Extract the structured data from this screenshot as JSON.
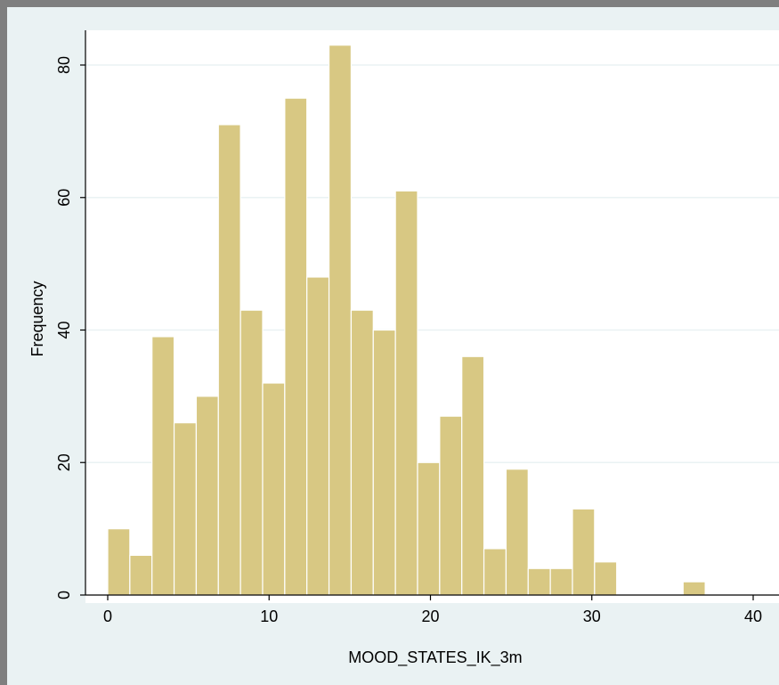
{
  "colors": {
    "outer_background": "#7f7f7f",
    "graph_region": "#eaf2f3",
    "plot_region": "#ffffff",
    "gridline": "#eaf2f3",
    "bar_fill": "#d8c883",
    "bar_edge": "#c9b875",
    "axis_line": "#000000"
  },
  "chart_data": {
    "type": "bar",
    "subtype": "histogram",
    "xlabel": "MOOD_STATES_IK_3m",
    "ylabel": "Frequency",
    "xlim": [
      0,
      40
    ],
    "ylim": [
      0,
      85
    ],
    "xticks": [
      0,
      10,
      20,
      30,
      40
    ],
    "yticks": [
      0,
      20,
      40,
      60,
      80
    ],
    "grid": "horizontal",
    "bin_width": 1.371,
    "bins": [
      {
        "start": 0.0,
        "value": 10
      },
      {
        "start": 1.371,
        "value": 6
      },
      {
        "start": 2.743,
        "value": 39
      },
      {
        "start": 4.114,
        "value": 26
      },
      {
        "start": 5.486,
        "value": 30
      },
      {
        "start": 6.857,
        "value": 71
      },
      {
        "start": 8.229,
        "value": 43
      },
      {
        "start": 9.6,
        "value": 32
      },
      {
        "start": 10.971,
        "value": 75
      },
      {
        "start": 12.343,
        "value": 48
      },
      {
        "start": 13.714,
        "value": 83
      },
      {
        "start": 15.086,
        "value": 43
      },
      {
        "start": 16.457,
        "value": 40
      },
      {
        "start": 17.829,
        "value": 61
      },
      {
        "start": 19.2,
        "value": 20
      },
      {
        "start": 20.571,
        "value": 27
      },
      {
        "start": 21.943,
        "value": 36
      },
      {
        "start": 23.314,
        "value": 7
      },
      {
        "start": 24.686,
        "value": 19
      },
      {
        "start": 26.057,
        "value": 4
      },
      {
        "start": 27.429,
        "value": 4
      },
      {
        "start": 28.8,
        "value": 13
      },
      {
        "start": 30.171,
        "value": 5
      },
      {
        "start": 35.657,
        "value": 2
      }
    ]
  }
}
